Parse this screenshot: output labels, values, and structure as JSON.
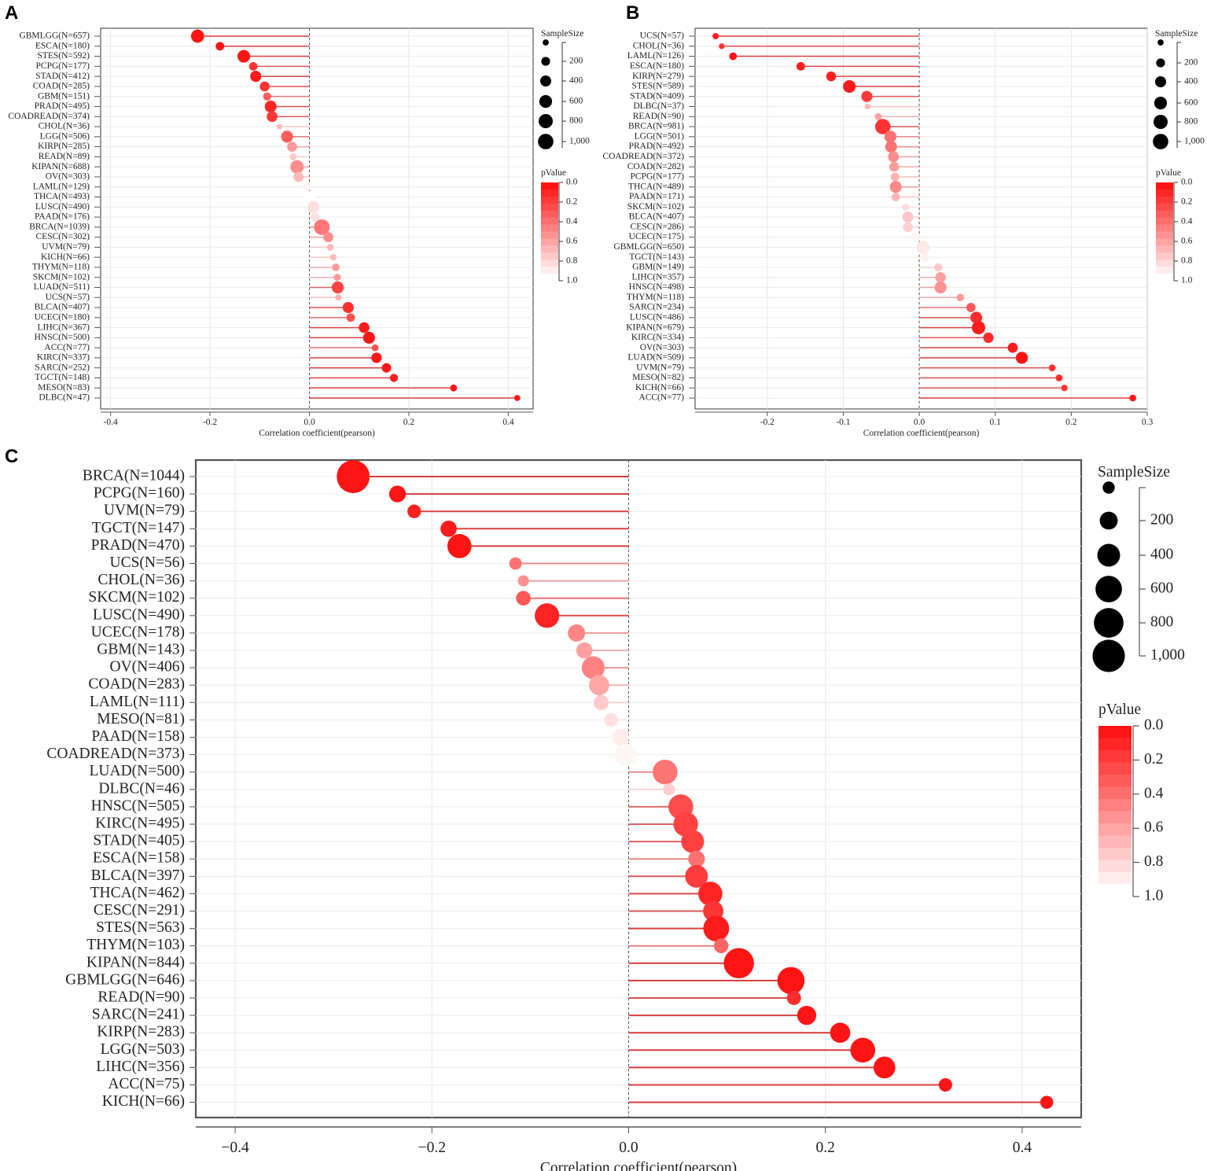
{
  "panel_letters": [
    "A",
    "B",
    "C"
  ],
  "chart_data": [
    {
      "type": "lollipop",
      "panel": "A",
      "xlabel": "Correlation coefficient(pearson)",
      "xlim": [
        -0.42,
        0.45
      ],
      "xticks": [
        -0.4,
        -0.2,
        0.0,
        0.2,
        0.4
      ],
      "xtick_labels": [
        "-0.4",
        "-0.2",
        "0.0",
        "0.2",
        "0.4"
      ],
      "size_legend": {
        "title": "SampleSize",
        "values": [
          50,
          200,
          400,
          600,
          800,
          1000
        ],
        "labels": [
          "",
          "200",
          "400",
          "600",
          "800",
          "1,000"
        ]
      },
      "color_legend": {
        "title": "pValue",
        "ticks": [
          0.0,
          0.2,
          0.4,
          0.6,
          0.8,
          1.0
        ],
        "labels": [
          "0.0",
          "0.2",
          "0.4",
          "0.6",
          "0.8",
          "1.0"
        ]
      },
      "points": [
        {
          "label": "GBMLGG(N=657)",
          "r": -0.225,
          "n": 657,
          "p": 0.0
        },
        {
          "label": "ESCA(N=180)",
          "r": -0.18,
          "n": 180,
          "p": 0.01
        },
        {
          "label": "STES(N=592)",
          "r": -0.132,
          "n": 592,
          "p": 0.001
        },
        {
          "label": "PCPG(N=177)",
          "r": -0.113,
          "n": 177,
          "p": 0.13
        },
        {
          "label": "STAD(N=412)",
          "r": -0.108,
          "n": 412,
          "p": 0.03
        },
        {
          "label": "COAD(N=285)",
          "r": -0.09,
          "n": 285,
          "p": 0.13
        },
        {
          "label": "GBM(N=151)",
          "r": -0.085,
          "n": 151,
          "p": 0.3
        },
        {
          "label": "PRAD(N=495)",
          "r": -0.078,
          "n": 495,
          "p": 0.08
        },
        {
          "label": "COADREAD(N=374)",
          "r": -0.075,
          "n": 374,
          "p": 0.15
        },
        {
          "label": "CHOL(N=36)",
          "r": -0.06,
          "n": 36,
          "p": 0.72
        },
        {
          "label": "LGG(N=506)",
          "r": -0.045,
          "n": 506,
          "p": 0.31
        },
        {
          "label": "KIRP(N=285)",
          "r": -0.035,
          "n": 285,
          "p": 0.56
        },
        {
          "label": "READ(N=89)",
          "r": -0.033,
          "n": 89,
          "p": 0.76
        },
        {
          "label": "KIPAN(N=688)",
          "r": -0.025,
          "n": 688,
          "p": 0.51
        },
        {
          "label": "OV(N=303)",
          "r": -0.022,
          "n": 303,
          "p": 0.7
        },
        {
          "label": "LAML(N=129)",
          "r": -0.005,
          "n": 129,
          "p": 0.95
        },
        {
          "label": "THCA(N=493)",
          "r": 0.0,
          "n": 493,
          "p": 0.99
        },
        {
          "label": "LUSC(N=490)",
          "r": 0.008,
          "n": 490,
          "p": 0.86
        },
        {
          "label": "PAAD(N=176)",
          "r": 0.012,
          "n": 176,
          "p": 0.87
        },
        {
          "label": "BRCA(N=1039)",
          "r": 0.025,
          "n": 1039,
          "p": 0.42
        },
        {
          "label": "CESC(N=302)",
          "r": 0.038,
          "n": 302,
          "p": 0.51
        },
        {
          "label": "UVM(N=79)",
          "r": 0.042,
          "n": 79,
          "p": 0.71
        },
        {
          "label": "KICH(N=66)",
          "r": 0.048,
          "n": 66,
          "p": 0.7
        },
        {
          "label": "THYM(N=118)",
          "r": 0.053,
          "n": 118,
          "p": 0.57
        },
        {
          "label": "SKCM(N=102)",
          "r": 0.056,
          "n": 102,
          "p": 0.57
        },
        {
          "label": "LUAD(N=511)",
          "r": 0.057,
          "n": 511,
          "p": 0.2
        },
        {
          "label": "UCS(N=57)",
          "r": 0.058,
          "n": 57,
          "p": 0.67
        },
        {
          "label": "BLCA(N=407)",
          "r": 0.078,
          "n": 407,
          "p": 0.11
        },
        {
          "label": "UCEC(N=180)",
          "r": 0.083,
          "n": 180,
          "p": 0.27
        },
        {
          "label": "LIHC(N=367)",
          "r": 0.11,
          "n": 367,
          "p": 0.03
        },
        {
          "label": "HNSC(N=500)",
          "r": 0.12,
          "n": 500,
          "p": 0.007
        },
        {
          "label": "ACC(N=77)",
          "r": 0.132,
          "n": 77,
          "p": 0.25
        },
        {
          "label": "KIRC(N=337)",
          "r": 0.135,
          "n": 337,
          "p": 0.013
        },
        {
          "label": "SARC(N=252)",
          "r": 0.155,
          "n": 252,
          "p": 0.014
        },
        {
          "label": "TGCT(N=148)",
          "r": 0.17,
          "n": 148,
          "p": 0.04
        },
        {
          "label": "MESO(N=83)",
          "r": 0.29,
          "n": 83,
          "p": 0.008
        },
        {
          "label": "DLBC(N=47)",
          "r": 0.418,
          "n": 47,
          "p": 0.003
        }
      ]
    },
    {
      "type": "lollipop",
      "panel": "B",
      "xlabel": "Correlation coefficient(pearson)",
      "xlim": [
        -0.295,
        0.3
      ],
      "xticks": [
        -0.2,
        -0.1,
        0.0,
        0.1,
        0.2,
        0.3
      ],
      "xtick_labels": [
        "-0.2",
        "-0.1",
        "0.0",
        "0.1",
        "0.2",
        "0.3"
      ],
      "size_legend": {
        "title": "SampleSize",
        "values": [
          50,
          200,
          400,
          600,
          800,
          1000
        ],
        "labels": [
          "",
          "200",
          "400",
          "600",
          "800",
          "1,000"
        ]
      },
      "color_legend": {
        "title": "pValue",
        "ticks": [
          0.0,
          0.2,
          0.4,
          0.6,
          0.8,
          1.0
        ],
        "labels": [
          "0.0",
          "0.2",
          "0.4",
          "0.6",
          "0.8",
          "1.0"
        ]
      },
      "points": [
        {
          "label": "UCS(N=57)",
          "r": -0.268,
          "n": 57,
          "p": 0.04
        },
        {
          "label": "CHOL(N=36)",
          "r": -0.26,
          "n": 36,
          "p": 0.12
        },
        {
          "label": "LAML(N=126)",
          "r": -0.245,
          "n": 126,
          "p": 0.005
        },
        {
          "label": "ESCA(N=180)",
          "r": -0.156,
          "n": 180,
          "p": 0.04
        },
        {
          "label": "KIRP(N=279)",
          "r": -0.116,
          "n": 279,
          "p": 0.05
        },
        {
          "label": "STES(N=589)",
          "r": -0.092,
          "n": 589,
          "p": 0.03
        },
        {
          "label": "STAD(N=409)",
          "r": -0.069,
          "n": 409,
          "p": 0.16
        },
        {
          "label": "DLBC(N=37)",
          "r": -0.068,
          "n": 37,
          "p": 0.68
        },
        {
          "label": "READ(N=90)",
          "r": -0.054,
          "n": 90,
          "p": 0.61
        },
        {
          "label": "BRCA(N=981)",
          "r": -0.048,
          "n": 981,
          "p": 0.13
        },
        {
          "label": "LGG(N=501)",
          "r": -0.038,
          "n": 501,
          "p": 0.39
        },
        {
          "label": "PRAD(N=492)",
          "r": -0.037,
          "n": 492,
          "p": 0.41
        },
        {
          "label": "COADREAD(N=372)",
          "r": -0.034,
          "n": 372,
          "p": 0.51
        },
        {
          "label": "COAD(N=282)",
          "r": -0.033,
          "n": 282,
          "p": 0.58
        },
        {
          "label": "PCPG(N=177)",
          "r": -0.032,
          "n": 177,
          "p": 0.67
        },
        {
          "label": "THCA(N=489)",
          "r": -0.031,
          "n": 489,
          "p": 0.49
        },
        {
          "label": "PAAD(N=171)",
          "r": -0.031,
          "n": 171,
          "p": 0.69
        },
        {
          "label": "SKCM(N=102)",
          "r": -0.018,
          "n": 102,
          "p": 0.86
        },
        {
          "label": "BLCA(N=407)",
          "r": -0.015,
          "n": 407,
          "p": 0.76
        },
        {
          "label": "CESC(N=286)",
          "r": -0.015,
          "n": 286,
          "p": 0.8
        },
        {
          "label": "UCEC(N=175)",
          "r": -0.005,
          "n": 175,
          "p": 0.95
        },
        {
          "label": "GBMLGG(N=650)",
          "r": 0.005,
          "n": 650,
          "p": 0.9
        },
        {
          "label": "TGCT(N=143)",
          "r": 0.008,
          "n": 143,
          "p": 0.93
        },
        {
          "label": "GBM(N=149)",
          "r": 0.025,
          "n": 149,
          "p": 0.76
        },
        {
          "label": "LIHC(N=357)",
          "r": 0.028,
          "n": 357,
          "p": 0.6
        },
        {
          "label": "HNSC(N=498)",
          "r": 0.028,
          "n": 498,
          "p": 0.53
        },
        {
          "label": "THYM(N=118)",
          "r": 0.054,
          "n": 118,
          "p": 0.56
        },
        {
          "label": "SARC(N=234)",
          "r": 0.068,
          "n": 234,
          "p": 0.3
        },
        {
          "label": "LUSC(N=486)",
          "r": 0.075,
          "n": 486,
          "p": 0.1
        },
        {
          "label": "KIPAN(N=679)",
          "r": 0.078,
          "n": 679,
          "p": 0.04
        },
        {
          "label": "KIRC(N=334)",
          "r": 0.091,
          "n": 334,
          "p": 0.1
        },
        {
          "label": "OV(N=303)",
          "r": 0.123,
          "n": 303,
          "p": 0.03
        },
        {
          "label": "LUAD(N=509)",
          "r": 0.135,
          "n": 509,
          "p": 0.002
        },
        {
          "label": "UVM(N=79)",
          "r": 0.175,
          "n": 79,
          "p": 0.12
        },
        {
          "label": "MESO(N=82)",
          "r": 0.184,
          "n": 82,
          "p": 0.1
        },
        {
          "label": "KICH(N=66)",
          "r": 0.191,
          "n": 66,
          "p": 0.13
        },
        {
          "label": "ACC(N=77)",
          "r": 0.281,
          "n": 77,
          "p": 0.013
        }
      ]
    },
    {
      "type": "lollipop",
      "panel": "C",
      "xlabel": "Correlation coefficient(pearson)",
      "xlim": [
        -0.44,
        0.46
      ],
      "xticks": [
        -0.4,
        -0.2,
        0.0,
        0.2,
        0.4
      ],
      "xtick_labels": [
        "−0.4",
        "−0.2",
        "0.0",
        "0.2",
        "0.4"
      ],
      "size_legend": {
        "title": "SampleSize",
        "values": [
          50,
          200,
          400,
          600,
          800,
          1000
        ],
        "labels": [
          "",
          "200",
          "400",
          "600",
          "800",
          "1,000"
        ]
      },
      "color_legend": {
        "title": "pValue",
        "ticks": [
          0.0,
          0.2,
          0.4,
          0.6,
          0.8,
          1.0
        ],
        "labels": [
          "0.0",
          "0.2",
          "0.4",
          "0.6",
          "0.8",
          "1.0"
        ]
      },
      "points": [
        {
          "label": "BRCA(N=1044)",
          "r": -0.28,
          "n": 1044,
          "p": 0.0
        },
        {
          "label": "PCPG(N=160)",
          "r": -0.235,
          "n": 160,
          "p": 0.003
        },
        {
          "label": "UVM(N=79)",
          "r": -0.218,
          "n": 79,
          "p": 0.05
        },
        {
          "label": "TGCT(N=147)",
          "r": -0.183,
          "n": 147,
          "p": 0.03
        },
        {
          "label": "PRAD(N=470)",
          "r": -0.172,
          "n": 470,
          "p": 0.0
        },
        {
          "label": "UCS(N=56)",
          "r": -0.115,
          "n": 56,
          "p": 0.4
        },
        {
          "label": "CHOL(N=36)",
          "r": -0.107,
          "n": 36,
          "p": 0.53
        },
        {
          "label": "SKCM(N=102)",
          "r": -0.107,
          "n": 102,
          "p": 0.29
        },
        {
          "label": "LUSC(N=490)",
          "r": -0.083,
          "n": 490,
          "p": 0.07
        },
        {
          "label": "UCEC(N=178)",
          "r": -0.053,
          "n": 178,
          "p": 0.48
        },
        {
          "label": "GBM(N=143)",
          "r": -0.045,
          "n": 143,
          "p": 0.59
        },
        {
          "label": "OV(N=406)",
          "r": -0.036,
          "n": 406,
          "p": 0.47
        },
        {
          "label": "COAD(N=283)",
          "r": -0.03,
          "n": 283,
          "p": 0.62
        },
        {
          "label": "LAML(N=111)",
          "r": -0.028,
          "n": 111,
          "p": 0.77
        },
        {
          "label": "MESO(N=81)",
          "r": -0.018,
          "n": 81,
          "p": 0.87
        },
        {
          "label": "PAAD(N=158)",
          "r": -0.008,
          "n": 158,
          "p": 0.92
        },
        {
          "label": "COADREAD(N=373)",
          "r": -0.003,
          "n": 373,
          "p": 0.96
        },
        {
          "label": "LUAD(N=500)",
          "r": 0.037,
          "n": 500,
          "p": 0.41
        },
        {
          "label": "DLBC(N=46)",
          "r": 0.041,
          "n": 46,
          "p": 0.79
        },
        {
          "label": "HNSC(N=505)",
          "r": 0.053,
          "n": 505,
          "p": 0.24
        },
        {
          "label": "KIRC(N=495)",
          "r": 0.058,
          "n": 495,
          "p": 0.2
        },
        {
          "label": "STAD(N=405)",
          "r": 0.065,
          "n": 405,
          "p": 0.19
        },
        {
          "label": "ESCA(N=158)",
          "r": 0.069,
          "n": 158,
          "p": 0.39
        },
        {
          "label": "BLCA(N=397)",
          "r": 0.069,
          "n": 397,
          "p": 0.17
        },
        {
          "label": "THCA(N=462)",
          "r": 0.083,
          "n": 462,
          "p": 0.07
        },
        {
          "label": "CESC(N=291)",
          "r": 0.086,
          "n": 291,
          "p": 0.14
        },
        {
          "label": "STES(N=563)",
          "r": 0.089,
          "n": 563,
          "p": 0.03
        },
        {
          "label": "THYM(N=103)",
          "r": 0.094,
          "n": 103,
          "p": 0.35
        },
        {
          "label": "KIPAN(N=844)",
          "r": 0.112,
          "n": 844,
          "p": 0.001
        },
        {
          "label": "GBMLGG(N=646)",
          "r": 0.165,
          "n": 646,
          "p": 0.0
        },
        {
          "label": "READ(N=90)",
          "r": 0.168,
          "n": 90,
          "p": 0.11
        },
        {
          "label": "SARC(N=241)",
          "r": 0.181,
          "n": 241,
          "p": 0.005
        },
        {
          "label": "KIRP(N=283)",
          "r": 0.215,
          "n": 283,
          "p": 0.0
        },
        {
          "label": "LGG(N=503)",
          "r": 0.238,
          "n": 503,
          "p": 0.0
        },
        {
          "label": "LIHC(N=356)",
          "r": 0.26,
          "n": 356,
          "p": 0.0
        },
        {
          "label": "ACC(N=75)",
          "r": 0.322,
          "n": 75,
          "p": 0.005
        },
        {
          "label": "KICH(N=66)",
          "r": 0.425,
          "n": 66,
          "p": 0.0005
        }
      ]
    }
  ]
}
